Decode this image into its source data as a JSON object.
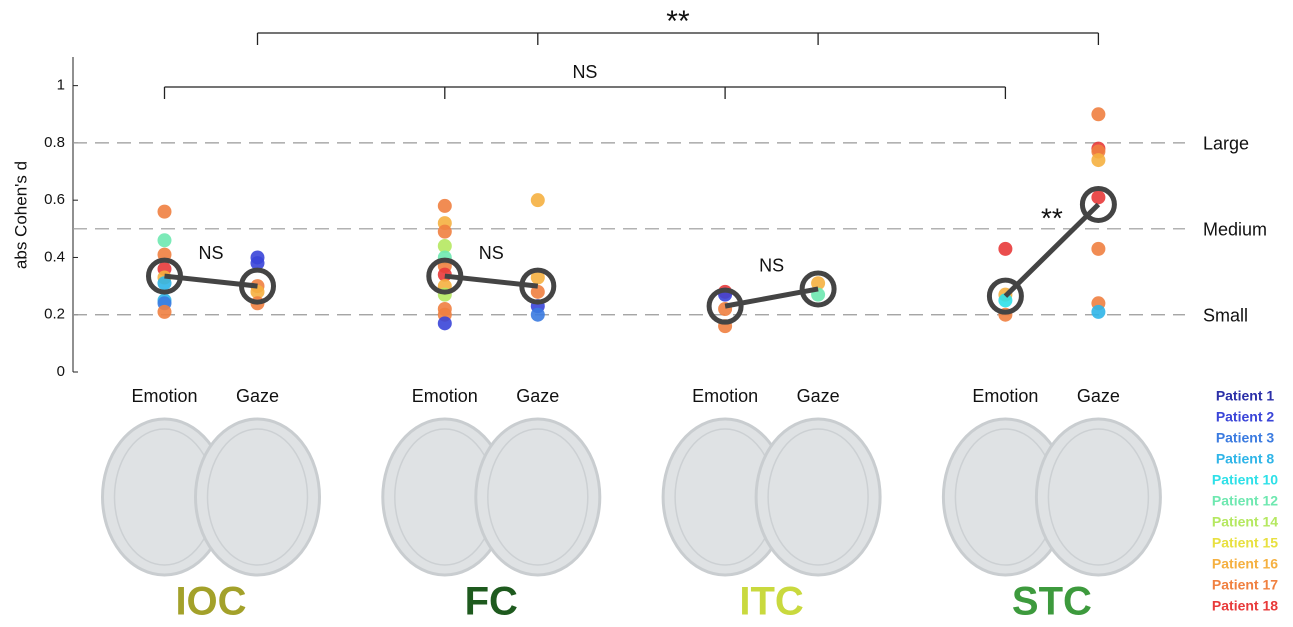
{
  "chart_data": {
    "type": "dot",
    "y_label": "abs Cohen's d",
    "ylim": [
      0,
      1.1
    ],
    "yticks": [
      0,
      0.2,
      0.4,
      0.6,
      0.8,
      1
    ],
    "reference_lines": [
      {
        "value": 0.8,
        "label": "Large"
      },
      {
        "value": 0.5,
        "label": "Medium"
      },
      {
        "value": 0.2,
        "label": "Small"
      }
    ],
    "groups": [
      {
        "name": "IOC",
        "color": "#a3a12a",
        "significance": "NS",
        "columns": [
          {
            "category": "Emotion",
            "mean": 0.335,
            "points": [
              0.56,
              0.46,
              0.41,
              0.36,
              0.33,
              0.31,
              0.25,
              0.24,
              0.21
            ],
            "point_colors": [
              "#f08040",
              "#6ee8b0",
              "#f08040",
              "#e83a3a",
              "#f5b040",
              "#2fb5e8",
              "#2fb5e8",
              "#3b7be0",
              "#f08040"
            ]
          },
          {
            "category": "Gaze",
            "mean": 0.3,
            "points": [
              0.4,
              0.38,
              0.3,
              0.28,
              0.24
            ],
            "point_colors": [
              "#3a45d8",
              "#3a45d8",
              "#f08040",
              "#f5b040",
              "#f08040"
            ]
          }
        ]
      },
      {
        "name": "FC",
        "color": "#1e5a1e",
        "significance": "NS",
        "columns": [
          {
            "category": "Emotion",
            "mean": 0.335,
            "points": [
              0.58,
              0.52,
              0.49,
              0.44,
              0.4,
              0.37,
              0.34,
              0.3,
              0.27,
              0.22,
              0.2,
              0.17
            ],
            "point_colors": [
              "#f08040",
              "#f5b040",
              "#f08040",
              "#b5e860",
              "#6ee8b0",
              "#f08040",
              "#e83a3a",
              "#f5b040",
              "#b5e860",
              "#f08040",
              "#f08040",
              "#3a45d8"
            ]
          },
          {
            "category": "Gaze",
            "mean": 0.3,
            "points": [
              0.6,
              0.33,
              0.28,
              0.23,
              0.2
            ],
            "point_colors": [
              "#f5b040",
              "#f5b040",
              "#f08040",
              "#3a45d8",
              "#3b7be0"
            ]
          }
        ]
      },
      {
        "name": "ITC",
        "color": "#c9d93e",
        "significance": "NS",
        "columns": [
          {
            "category": "Emotion",
            "mean": 0.23,
            "points": [
              0.28,
              0.27,
              0.22,
              0.16
            ],
            "point_colors": [
              "#e83a3a",
              "#3a45d8",
              "#f08040",
              "#f08040"
            ]
          },
          {
            "category": "Gaze",
            "mean": 0.29,
            "points": [
              0.31,
              0.27
            ],
            "point_colors": [
              "#f5b040",
              "#6ee8b0"
            ]
          }
        ]
      },
      {
        "name": "STC",
        "color": "#3d9a3d",
        "significance": "**",
        "columns": [
          {
            "category": "Emotion",
            "mean": 0.265,
            "points": [
              0.43,
              0.27,
              0.25,
              0.2
            ],
            "point_colors": [
              "#e83a3a",
              "#f5b040",
              "#2ee0e8",
              "#f08040"
            ]
          },
          {
            "category": "Gaze",
            "mean": 0.585,
            "points": [
              0.9,
              0.78,
              0.77,
              0.74,
              0.61,
              0.43,
              0.24,
              0.21
            ],
            "point_colors": [
              "#f08040",
              "#e83a3a",
              "#f08040",
              "#f5b040",
              "#e83a3a",
              "#f08040",
              "#f08040",
              "#2fb5e8"
            ]
          }
        ]
      }
    ],
    "comparisons": [
      {
        "label": "**",
        "column": 1
      },
      {
        "label": "NS",
        "column": 0
      }
    ],
    "legend": [
      {
        "name": "Patient 1",
        "color": "#2b2fa8"
      },
      {
        "name": "Patient 2",
        "color": "#3a45d8"
      },
      {
        "name": "Patient 3",
        "color": "#3b7be0"
      },
      {
        "name": "Patient 8",
        "color": "#2fb5e8"
      },
      {
        "name": "Patient 10",
        "color": "#2ee0e8"
      },
      {
        "name": "Patient 12",
        "color": "#6ee8b0"
      },
      {
        "name": "Patient 14",
        "color": "#b5e860"
      },
      {
        "name": "Patient 15",
        "color": "#e8e040"
      },
      {
        "name": "Patient 16",
        "color": "#f5b040"
      },
      {
        "name": "Patient 17",
        "color": "#f08040"
      },
      {
        "name": "Patient 18",
        "color": "#e83a3a"
      }
    ]
  }
}
